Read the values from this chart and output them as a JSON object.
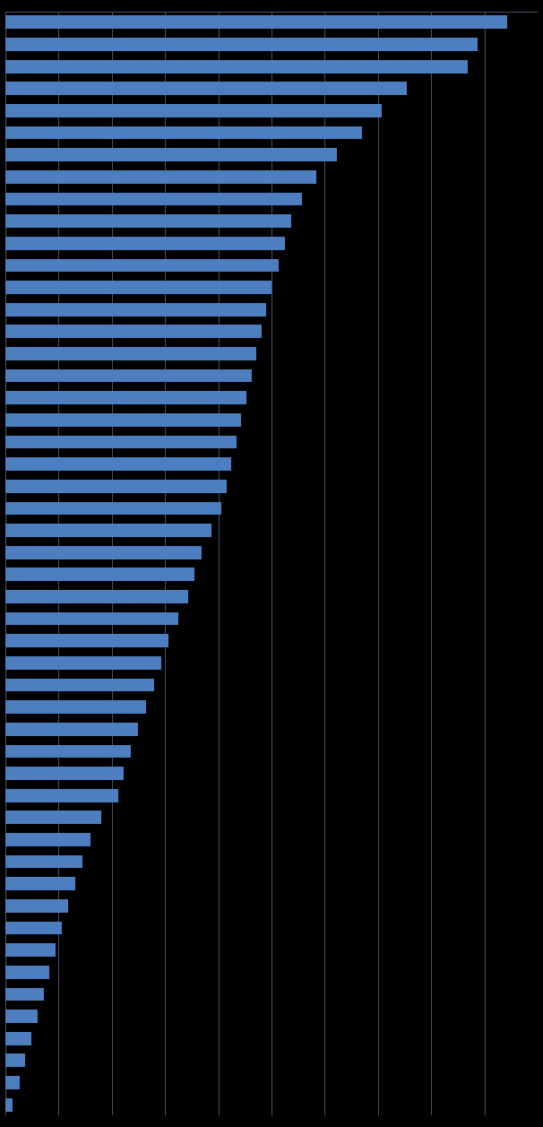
{
  "values": [
    500,
    470,
    460,
    400,
    375,
    355,
    330,
    310,
    295,
    285,
    278,
    272,
    265,
    260,
    255,
    250,
    245,
    240,
    235,
    230,
    225,
    220,
    215,
    205,
    195,
    188,
    182,
    172,
    162,
    155,
    148,
    140,
    132,
    125,
    118,
    112,
    95,
    85,
    77,
    70,
    62,
    56,
    50,
    44,
    38,
    32,
    26,
    20,
    14,
    7
  ],
  "bar_color": "#4d7ebf",
  "background_color": "#000000",
  "grid_color": "#505070",
  "xlim": [
    0,
    530
  ],
  "xtick_count": 10,
  "n_bars": 50
}
